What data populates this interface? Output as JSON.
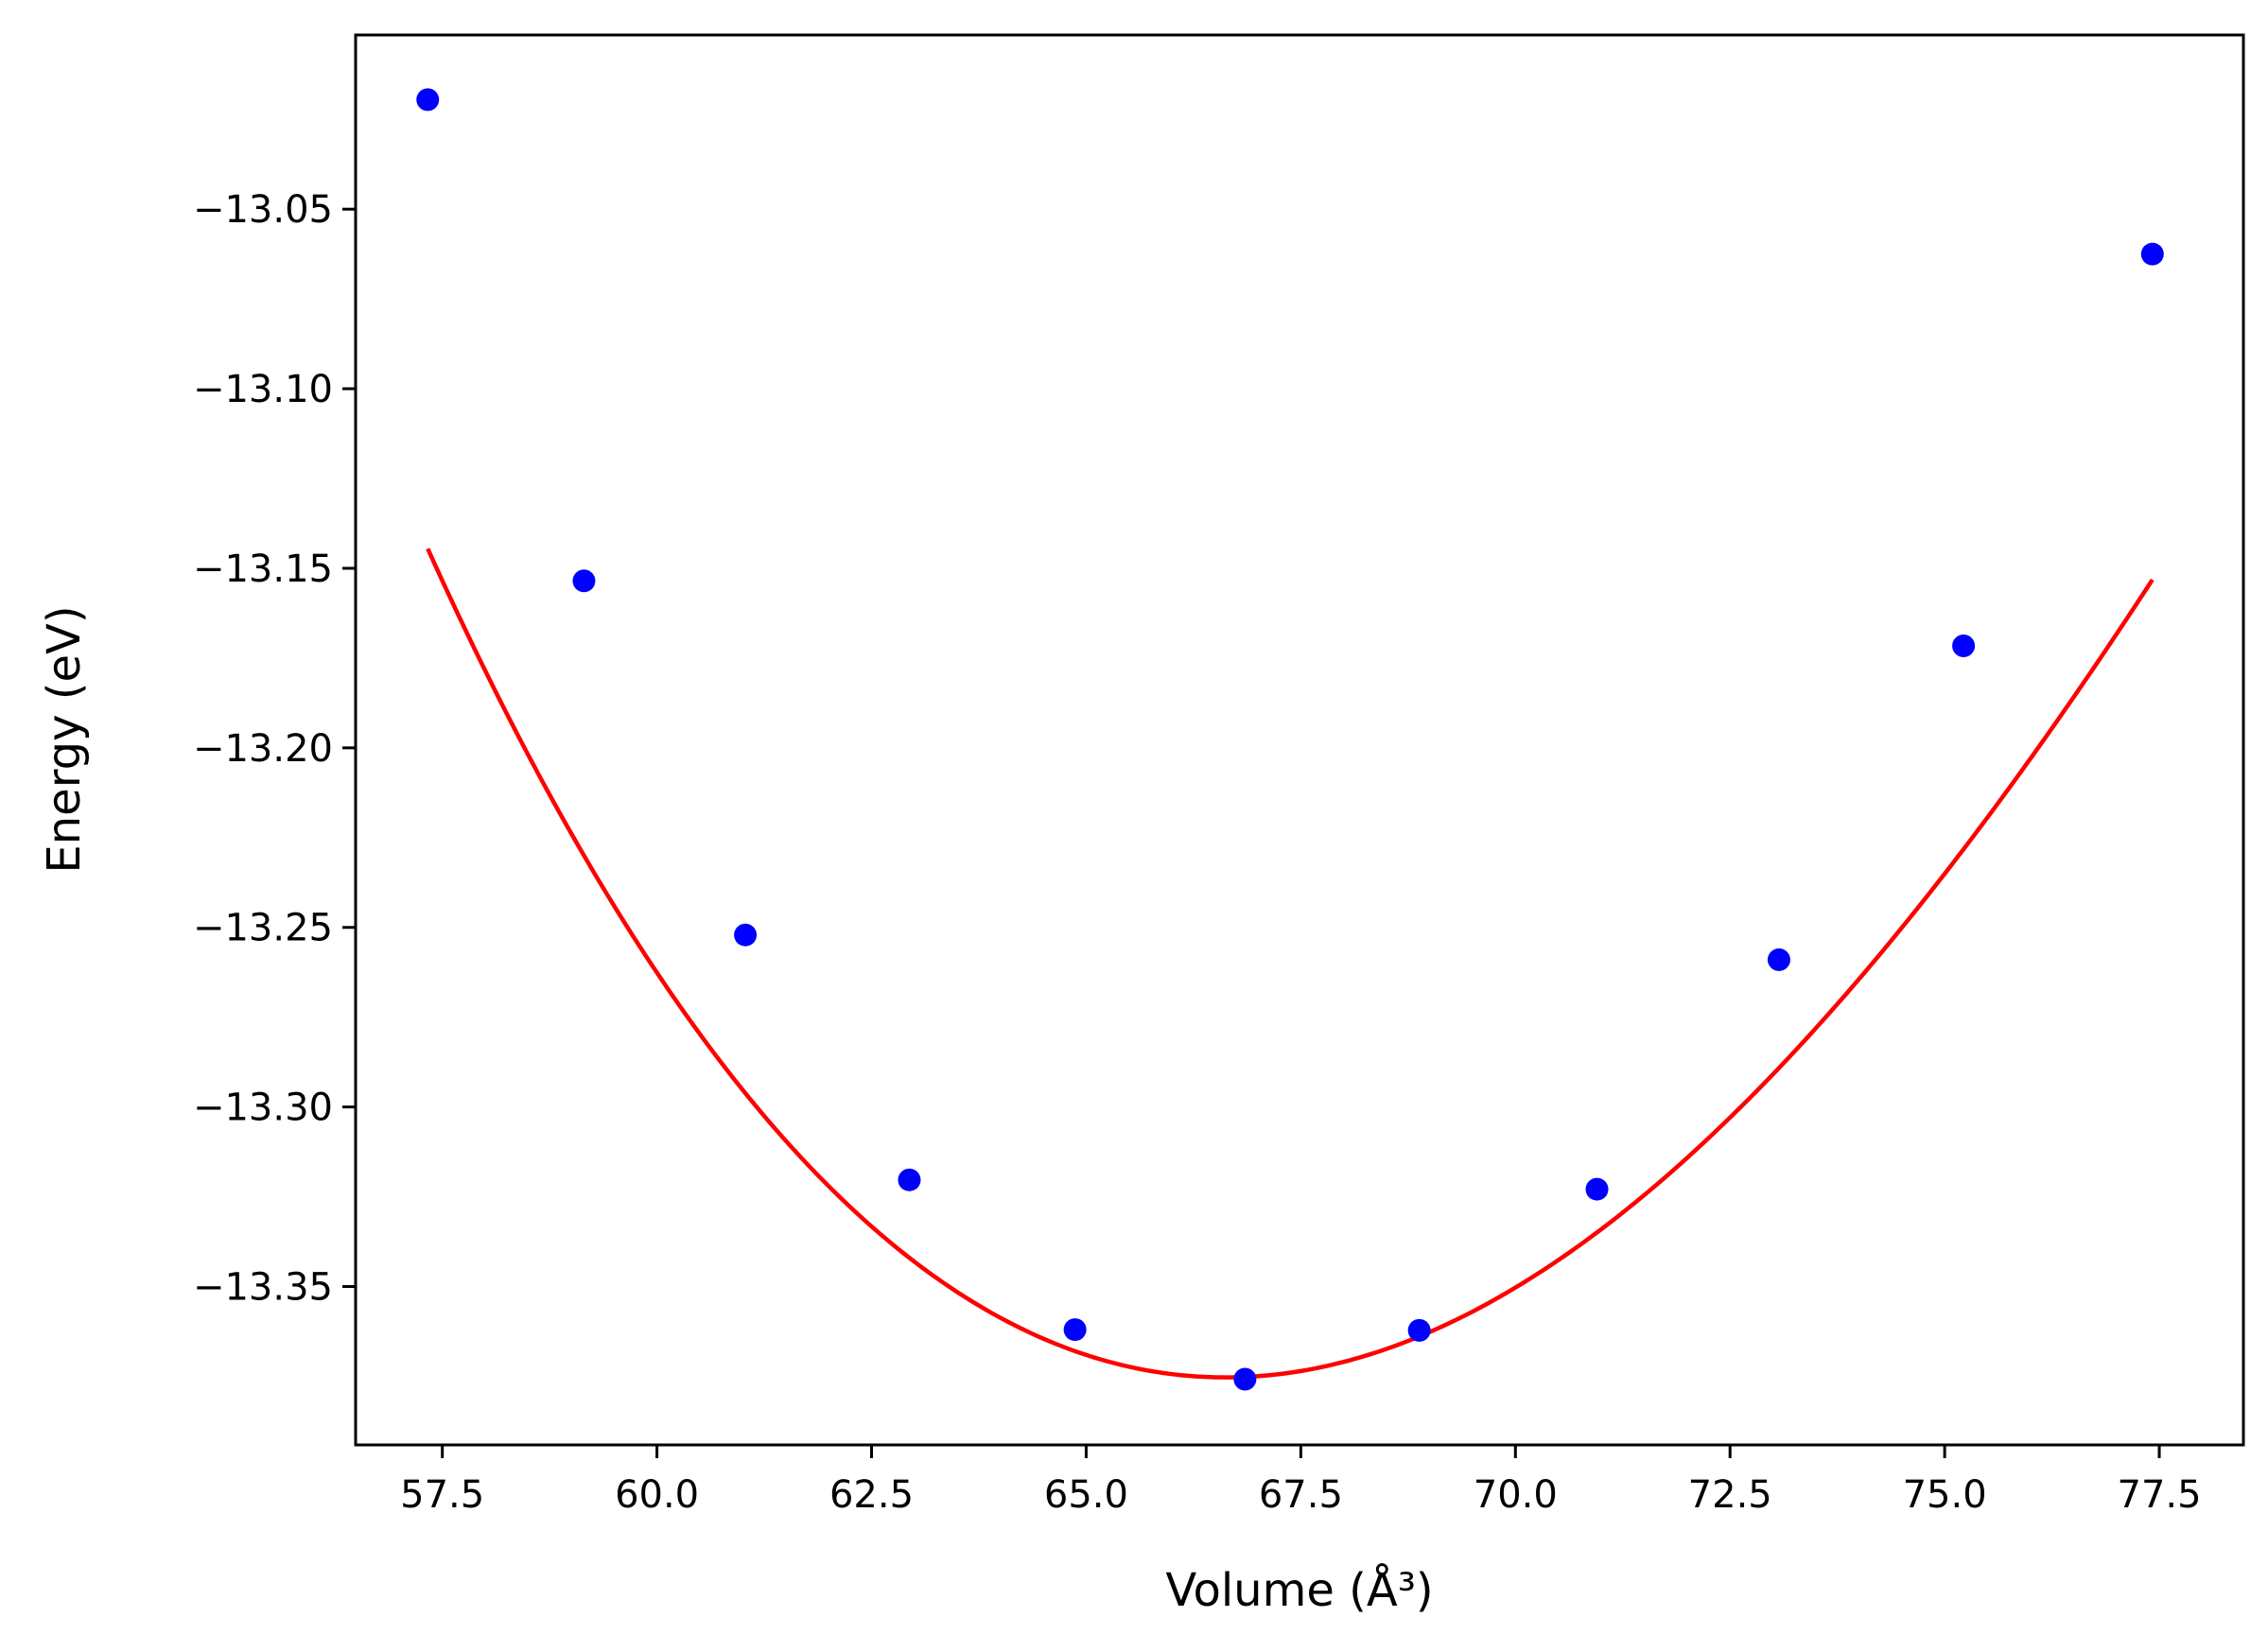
{
  "chart_data": {
    "type": "scatter",
    "xlabel": "Volume (Å³)",
    "ylabel": "Energy (eV)",
    "xlim": [
      56.49,
      78.48
    ],
    "ylim": [
      -13.3941,
      -13.0015
    ],
    "grid": false,
    "legend": "none",
    "x_ticks": [
      57.5,
      60.0,
      62.5,
      65.0,
      67.5,
      70.0,
      72.5,
      75.0,
      77.5
    ],
    "x_tick_labels": [
      "57.5",
      "60.0",
      "62.5",
      "65.0",
      "67.5",
      "70.0",
      "72.5",
      "75.0",
      "77.5"
    ],
    "y_ticks": [
      -13.05,
      -13.1,
      -13.15,
      -13.2,
      -13.25,
      -13.3,
      -13.35
    ],
    "y_tick_labels": [
      "−13.05",
      "−13.10",
      "−13.15",
      "−13.20",
      "−13.25",
      "−13.30",
      "−13.35"
    ],
    "points": {
      "color": "#0000ff",
      "x": [
        57.33,
        59.15,
        61.03,
        62.94,
        64.87,
        66.85,
        68.88,
        70.95,
        73.07,
        75.22,
        77.42
      ],
      "y": [
        -13.0195,
        -13.1535,
        -13.2521,
        -13.3203,
        -13.362,
        -13.3758,
        -13.3622,
        -13.3229,
        -13.259,
        -13.1716,
        -13.0625
      ]
    },
    "fit_curve": {
      "color": "#ff0000",
      "type": "cubic-fit",
      "coefficients": [
        -13.37528,
        0.00037,
        0.0023087,
        -3.83e-05
      ],
      "x0": 66.7
    }
  }
}
